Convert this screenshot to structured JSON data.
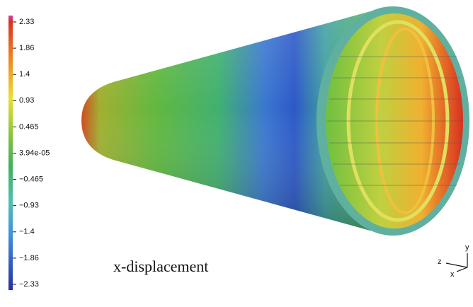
{
  "colorbar": {
    "labels": [
      "2.33",
      "1.86",
      "1.4",
      "0.93",
      "0.465",
      "3.94e-05",
      "−0.465",
      "−0.93",
      "−1.4",
      "−1.86",
      "−2.33"
    ]
  },
  "caption": "x-displacement",
  "axes": {
    "y": "y",
    "z": "z",
    "x": "x"
  }
}
